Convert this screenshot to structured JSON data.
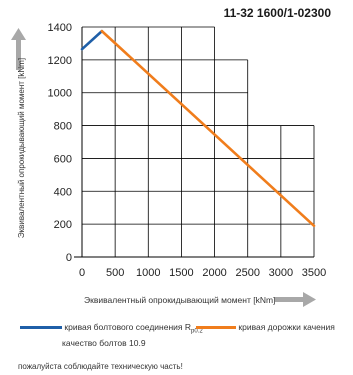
{
  "chart_data": {
    "type": "line",
    "title": "11-32 1600/1-02300",
    "xlabel": "Эквивалентный опрокидывающий момент [kNm]",
    "ylabel": "Эквивалентный опрокидывающий момент [kNm]",
    "xlim": [
      0,
      3500
    ],
    "ylim": [
      0,
      1400
    ],
    "x_ticks": [
      "0",
      "500",
      "1000",
      "1500",
      "2000",
      "2500",
      "3000",
      "3500"
    ],
    "y_ticks": [
      "0",
      "200",
      "400",
      "600",
      "800",
      "1000",
      "1200",
      "1400"
    ],
    "grid": "staircase",
    "series": [
      {
        "name": "кривая болтового соединения Rp0.2",
        "name_main": "кривая болтового соединения R",
        "name_sub": "p0.2",
        "name_line2": "качество болтов 10.9",
        "color": "#1f5fa8",
        "x": [
          0,
          300
        ],
        "y": [
          1265,
          1375
        ]
      },
      {
        "name": "кривая дорожки качения",
        "color": "#f07d1c",
        "x": [
          300,
          3500
        ],
        "y": [
          1375,
          190
        ]
      }
    ]
  },
  "footnote": "пожалуйста соблюдайте техническую часть!"
}
